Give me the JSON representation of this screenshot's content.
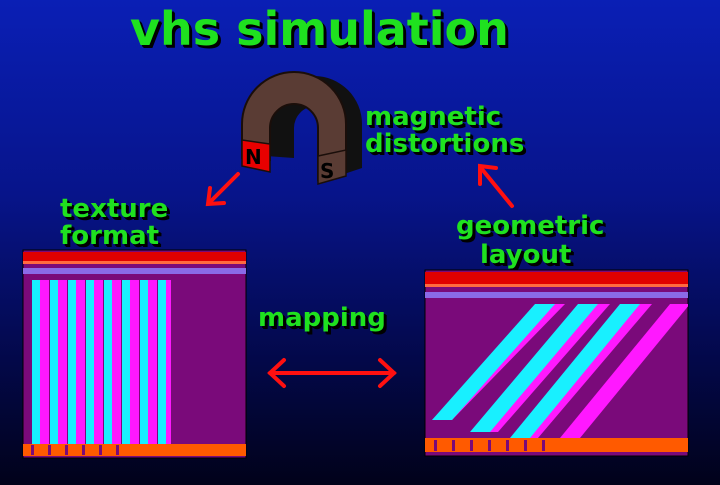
{
  "title": "vhs simulation",
  "labels": {
    "magnetic": [
      "magnetic",
      "distortions"
    ],
    "texture": [
      "texture",
      "format"
    ],
    "geometric": [
      "geometric",
      "layout"
    ],
    "mapping": "mapping"
  },
  "magnet": {
    "north": "N",
    "south": "S"
  },
  "colors": {
    "label_green": "#1fe11f",
    "arrow_red": "#ff1010",
    "panel_purple": "#7a0a7a",
    "stripe_cyan": "#18f0ff",
    "stripe_magenta": "#ff18ff",
    "bar_red": "#e00000",
    "bar_lavender": "#8a6ae8",
    "bar_orange": "#ff5a00"
  }
}
